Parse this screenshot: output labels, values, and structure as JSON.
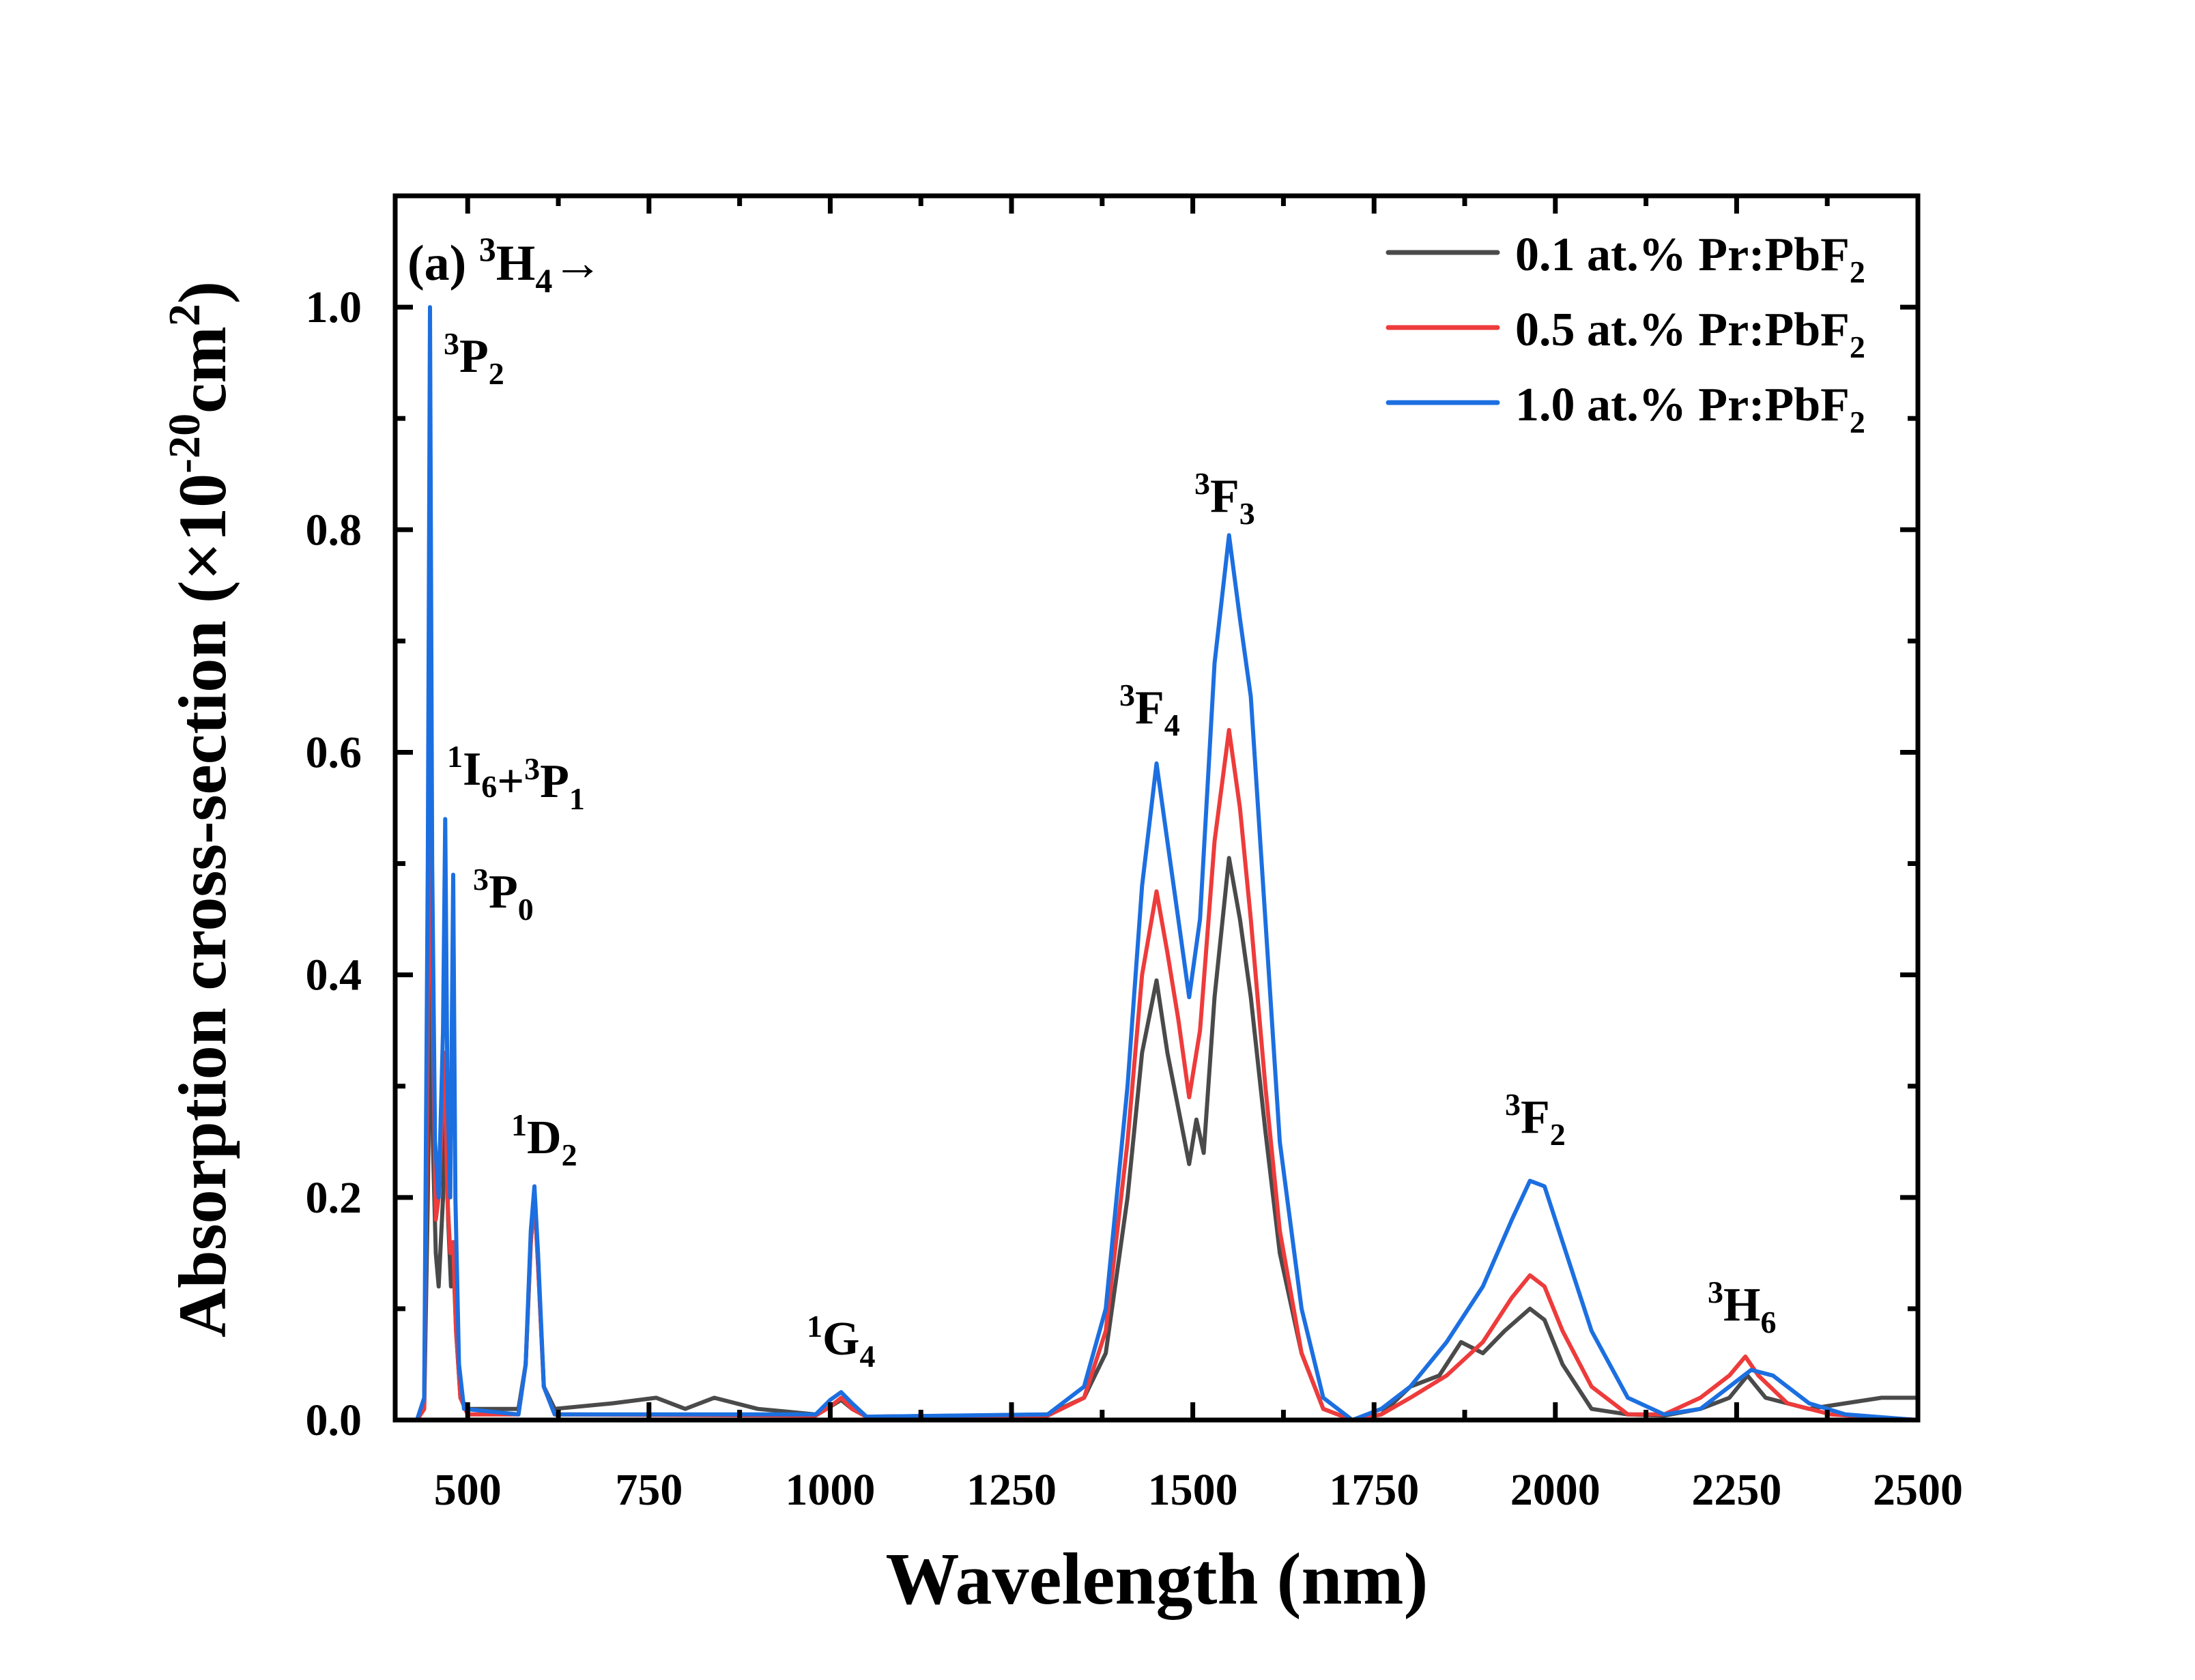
{
  "chart_data": {
    "type": "line",
    "title": "",
    "xlabel": "Wavelength (nm)",
    "ylabel": "Absorption cross-section (×10",
    "ylabel_sup": "-20",
    "ylabel_tail": "cm",
    "ylabel_sup2": "2",
    "ylabel_close": ")",
    "xlim": [
      400,
      2500
    ],
    "ylim": [
      0,
      1.1
    ],
    "xticks": [
      500,
      750,
      1000,
      1250,
      1500,
      1750,
      2000,
      2250,
      2500
    ],
    "yticks": [
      "0.0",
      "0.2",
      "0.4",
      "0.6",
      "0.8",
      "1.0"
    ],
    "grid": false,
    "legend_position": "top-right",
    "panel_label": {
      "text": "(a) ",
      "sup": "3",
      "base": "H",
      "sub": "4",
      "tail": "→"
    },
    "annotations": [
      {
        "parts": [
          {
            "sup": "3",
            "base": "P",
            "sub": "2"
          }
        ]
      },
      {
        "parts": [
          {
            "sup": "1",
            "base": "I",
            "sub": "6"
          },
          {
            "sup": "",
            "base": "+",
            "sub": ""
          },
          {
            "sup": "3",
            "base": "P",
            "sub": "1"
          }
        ]
      },
      {
        "parts": [
          {
            "sup": "3",
            "base": "P",
            "sub": "0"
          }
        ]
      },
      {
        "parts": [
          {
            "sup": "1",
            "base": "D",
            "sub": "2"
          }
        ]
      },
      {
        "parts": [
          {
            "sup": "1",
            "base": "G",
            "sub": "4"
          }
        ]
      },
      {
        "parts": [
          {
            "sup": "3",
            "base": "F",
            "sub": "4"
          }
        ]
      },
      {
        "parts": [
          {
            "sup": "3",
            "base": "F",
            "sub": "3"
          }
        ]
      },
      {
        "parts": [
          {
            "sup": "3",
            "base": "F",
            "sub": "2"
          }
        ]
      },
      {
        "parts": [
          {
            "sup": "3",
            "base": "H",
            "sub": "6"
          }
        ]
      }
    ],
    "series": [
      {
        "name": "0.1 at.% Pr:PbF",
        "name_sub": "2",
        "color": "#4a4a4a",
        "x": [
          430,
          440,
          445,
          449,
          452,
          456,
          460,
          466,
          469,
          473,
          477,
          480,
          484,
          490,
          500,
          540,
          570,
          580,
          587,
          592,
          597,
          605,
          620,
          700,
          760,
          800,
          840,
          900,
          980,
          1000,
          1015,
          1030,
          1050,
          1200,
          1300,
          1350,
          1380,
          1410,
          1430,
          1450,
          1465,
          1480,
          1495,
          1505,
          1515,
          1530,
          1550,
          1565,
          1580,
          1600,
          1620,
          1650,
          1680,
          1720,
          1760,
          1800,
          1840,
          1870,
          1900,
          1930,
          1965,
          1985,
          2010,
          2050,
          2100,
          2150,
          2200,
          2240,
          2265,
          2290,
          2350,
          2400,
          2450,
          2500
        ],
        "y": [
          0,
          0.01,
          0.2,
          0.42,
          0.25,
          0.15,
          0.12,
          0.2,
          0.3,
          0.18,
          0.12,
          0.15,
          0.08,
          0.02,
          0.01,
          0.01,
          0.01,
          0.05,
          0.16,
          0.2,
          0.14,
          0.03,
          0.01,
          0.015,
          0.02,
          0.01,
          0.02,
          0.01,
          0.005,
          0.012,
          0.018,
          0.01,
          0.003,
          0.004,
          0.005,
          0.02,
          0.06,
          0.2,
          0.33,
          0.395,
          0.33,
          0.28,
          0.23,
          0.27,
          0.24,
          0.38,
          0.505,
          0.45,
          0.38,
          0.26,
          0.15,
          0.06,
          0.01,
          0,
          0.005,
          0.03,
          0.04,
          0.07,
          0.06,
          0.08,
          0.1,
          0.09,
          0.05,
          0.01,
          0.005,
          0.004,
          0.01,
          0.02,
          0.04,
          0.02,
          0.01,
          0.015,
          0.02,
          0.02
        ]
      },
      {
        "name": "0.5 at.% Pr:PbF",
        "name_sub": "2",
        "color": "#ee3b3b",
        "x": [
          430,
          440,
          445,
          448,
          451,
          456,
          460,
          465,
          468,
          472,
          476,
          480,
          484,
          490,
          500,
          570,
          580,
          587,
          592,
          597,
          605,
          620,
          980,
          1000,
          1015,
          1030,
          1050,
          1300,
          1350,
          1380,
          1410,
          1430,
          1450,
          1465,
          1480,
          1495,
          1510,
          1530,
          1550,
          1565,
          1580,
          1600,
          1620,
          1650,
          1680,
          1720,
          1760,
          1800,
          1850,
          1900,
          1940,
          1965,
          1985,
          2010,
          2050,
          2100,
          2150,
          2200,
          2240,
          2262,
          2280,
          2320,
          2380,
          2500
        ],
        "y": [
          0,
          0.01,
          0.35,
          0.7,
          0.4,
          0.18,
          0.2,
          0.28,
          0.33,
          0.2,
          0.15,
          0.16,
          0.08,
          0.02,
          0.005,
          0.005,
          0.05,
          0.16,
          0.2,
          0.14,
          0.03,
          0.005,
          0.004,
          0.012,
          0.02,
          0.01,
          0.003,
          0.004,
          0.02,
          0.08,
          0.25,
          0.4,
          0.475,
          0.42,
          0.36,
          0.29,
          0.35,
          0.52,
          0.62,
          0.55,
          0.45,
          0.3,
          0.17,
          0.06,
          0.01,
          0,
          0.005,
          0.02,
          0.04,
          0.07,
          0.11,
          0.13,
          0.12,
          0.08,
          0.03,
          0.005,
          0.005,
          0.02,
          0.04,
          0.057,
          0.04,
          0.015,
          0.005,
          0
        ]
      },
      {
        "name": "1.0 at.% Pr:PbF",
        "name_sub": "2",
        "color": "#1c6fe0",
        "x": [
          430,
          440,
          445,
          448,
          451,
          455,
          460,
          466,
          469,
          472,
          476,
          480,
          483,
          488,
          495,
          570,
          580,
          587,
          592,
          597,
          605,
          620,
          980,
          1000,
          1015,
          1030,
          1050,
          1300,
          1350,
          1380,
          1410,
          1430,
          1450,
          1465,
          1480,
          1495,
          1510,
          1530,
          1550,
          1565,
          1580,
          1600,
          1620,
          1650,
          1680,
          1720,
          1760,
          1800,
          1850,
          1900,
          1940,
          1965,
          1985,
          2010,
          2050,
          2100,
          2150,
          2200,
          2240,
          2270,
          2300,
          2350,
          2400,
          2500
        ],
        "y": [
          0,
          0.02,
          0.5,
          1.0,
          0.5,
          0.25,
          0.2,
          0.35,
          0.54,
          0.3,
          0.2,
          0.49,
          0.2,
          0.05,
          0.01,
          0.005,
          0.05,
          0.17,
          0.21,
          0.15,
          0.03,
          0.005,
          0.005,
          0.018,
          0.025,
          0.015,
          0.003,
          0.005,
          0.03,
          0.1,
          0.3,
          0.48,
          0.59,
          0.52,
          0.45,
          0.38,
          0.45,
          0.68,
          0.795,
          0.72,
          0.65,
          0.45,
          0.25,
          0.1,
          0.02,
          0,
          0.01,
          0.03,
          0.07,
          0.12,
          0.18,
          0.215,
          0.21,
          0.16,
          0.08,
          0.02,
          0.005,
          0.01,
          0.03,
          0.045,
          0.04,
          0.015,
          0.005,
          0
        ]
      }
    ]
  }
}
